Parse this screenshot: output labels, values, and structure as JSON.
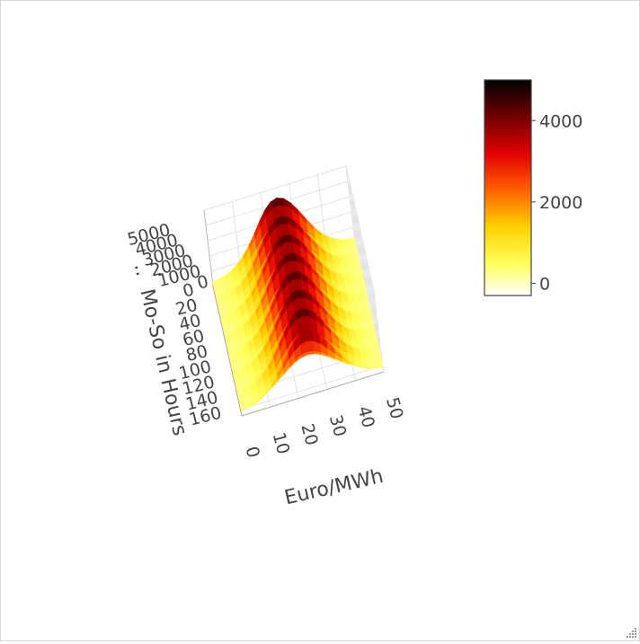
{
  "chart_data": {
    "type": "surface",
    "colorscale_name": "hot (reversed)",
    "x_axis": {
      "title": "Euro/MWh",
      "range": [
        0,
        50
      ],
      "ticks": [
        0,
        10,
        20,
        30,
        40,
        50
      ]
    },
    "y_axis": {
      "title": "Mo-So in Hours",
      "title_prefix": "..",
      "range": [
        0,
        168
      ],
      "ticks": [
        0,
        20,
        40,
        60,
        80,
        100,
        120,
        140,
        160
      ]
    },
    "z_axis": {
      "title": "",
      "range": [
        0,
        5000
      ],
      "ticks": [
        1000,
        2000,
        3000,
        4000,
        5000
      ],
      "extra_tick": "0"
    },
    "colorbar": {
      "range": [
        -300,
        5000
      ],
      "ticks": [
        0,
        2000,
        4000
      ],
      "tick_labels": [
        "0",
        "2000",
        "4000"
      ]
    },
    "colorscale": [
      {
        "stop": 0.0,
        "color": "#ffffff"
      },
      {
        "stop": 0.15,
        "color": "#ffff5a"
      },
      {
        "stop": 0.32,
        "color": "#ffd000"
      },
      {
        "stop": 0.5,
        "color": "#ff5a00"
      },
      {
        "stop": 0.66,
        "color": "#e00000"
      },
      {
        "stop": 0.82,
        "color": "#7a0000"
      },
      {
        "stop": 1.0,
        "color": "#000000"
      }
    ],
    "surface": {
      "peak_value": 4500,
      "peak_price_eur_mwh": 25,
      "price_spread_eur_mwh": 12,
      "daily_cycles": 7,
      "hours_per_day": 24,
      "base_value": 250
    }
  },
  "colors": {
    "grid": "#e2e2e2",
    "axis_text": "#444444",
    "frame": "#d6d6d6",
    "colorbar_outline": "#444444"
  }
}
